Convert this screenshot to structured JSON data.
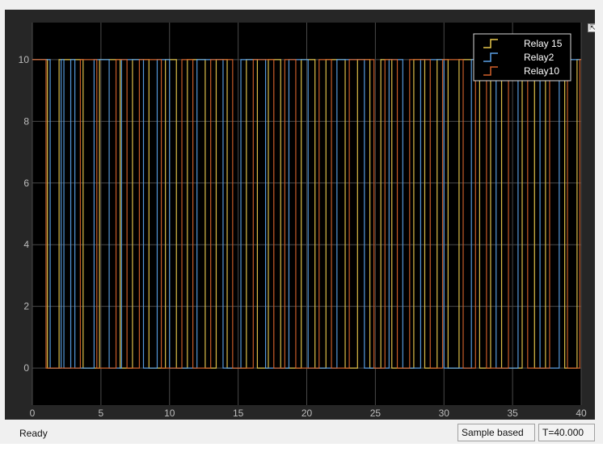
{
  "window": {
    "undock_glyph": "⇱"
  },
  "chart_data": {
    "type": "line",
    "xlim": [
      0,
      40
    ],
    "ylim": [
      -1.2,
      11.2
    ],
    "x_ticks": [
      0,
      5,
      10,
      15,
      20,
      25,
      30,
      35,
      40
    ],
    "y_ticks": [
      0,
      2,
      4,
      6,
      8,
      10
    ],
    "grid": true,
    "legend_position": "top-right",
    "high_level": 10,
    "low_level": 0,
    "series": [
      {
        "name": "Relay 15",
        "color": "#e8c84c",
        "step_times": [
          1.1,
          1.95,
          3.7,
          4.9,
          6.4,
          7.3,
          8.5,
          9.7,
          10.5,
          11.3,
          12.6,
          13.4,
          14.2,
          15.6,
          16.4,
          17.2,
          18.1,
          19.6,
          20.6,
          21.4,
          22.8,
          23.7,
          24.6,
          25.4,
          26.2,
          27.8,
          28.6,
          29.5,
          30.3,
          31.1,
          32.6,
          33.4,
          34.2,
          35.7,
          36.6,
          37.4,
          38.8,
          39.7
        ]
      },
      {
        "name": "Relay2",
        "color": "#5aa0e6",
        "step_times": [
          1.3,
          2.1,
          2.3,
          2.8,
          3.1,
          4.5,
          5.6,
          6.5,
          8.1,
          9.1,
          10.0,
          12.0,
          13.9,
          15.2,
          17.0,
          18.7,
          20.1,
          22.2,
          24.2,
          26.0,
          27.0,
          28.3,
          30.0,
          32.0,
          33.8,
          35.4,
          37.0,
          38.4
        ]
      },
      {
        "name": "Relay10",
        "color": "#d2612a",
        "step_times": [
          1.0,
          3.5,
          4.7,
          6.1,
          6.9,
          7.8,
          9.4,
          10.9,
          11.7,
          13.0,
          14.6,
          16.1,
          17.6,
          18.4,
          19.2,
          20.9,
          21.8,
          23.1,
          24.9,
          25.7,
          26.6,
          27.5,
          29.0,
          29.9,
          31.4,
          32.3,
          33.1,
          34.7,
          36.1,
          37.7,
          39.0,
          39.9
        ]
      }
    ]
  },
  "status": {
    "text": "Ready",
    "mode": "Sample based",
    "time": "T=40.000"
  }
}
